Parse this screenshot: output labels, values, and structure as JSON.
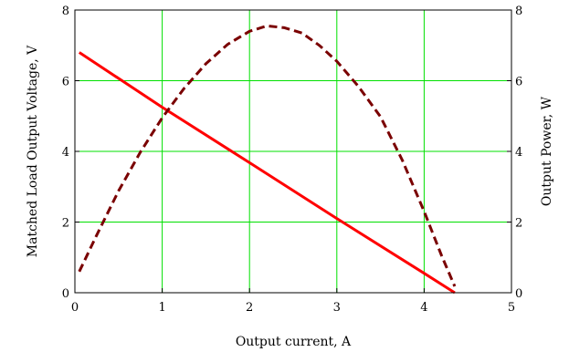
{
  "chart_data": {
    "type": "line",
    "title": "",
    "xlabel": "Output current, A",
    "ylabel_left": "Matched Load Output Voltage, V",
    "ylabel_right": "Output Power, W",
    "xlim": [
      0,
      5
    ],
    "ylim_left": [
      0,
      8
    ],
    "ylim_right": [
      0,
      8
    ],
    "x_ticks": [
      0,
      1,
      2,
      3,
      4,
      5
    ],
    "y_ticks_left": [
      0,
      2,
      4,
      6,
      8
    ],
    "y_ticks_right": [
      0,
      2,
      4,
      6,
      8
    ],
    "grid": true,
    "grid_color": "#00e000",
    "series": [
      {
        "axis": "left",
        "style": "solid",
        "color": "#ff0000",
        "x": [
          0.05,
          1.0,
          2.0,
          3.0,
          4.0,
          4.35
        ],
        "y": [
          6.8,
          5.25,
          3.68,
          2.1,
          0.55,
          0.0
        ]
      },
      {
        "axis": "right",
        "style": "dashed",
        "color": "#7a0000",
        "x": [
          0.05,
          0.25,
          0.5,
          0.75,
          1.0,
          1.25,
          1.5,
          1.75,
          2.0,
          2.2,
          2.4,
          2.6,
          2.8,
          3.0,
          3.25,
          3.5,
          3.75,
          4.0,
          4.2,
          4.35
        ],
        "y": [
          0.6,
          1.63,
          2.88,
          3.98,
          4.95,
          5.78,
          6.48,
          7.03,
          7.4,
          7.55,
          7.5,
          7.35,
          7.0,
          6.55,
          5.83,
          4.98,
          3.75,
          2.3,
          1.05,
          0.18
        ]
      }
    ]
  }
}
